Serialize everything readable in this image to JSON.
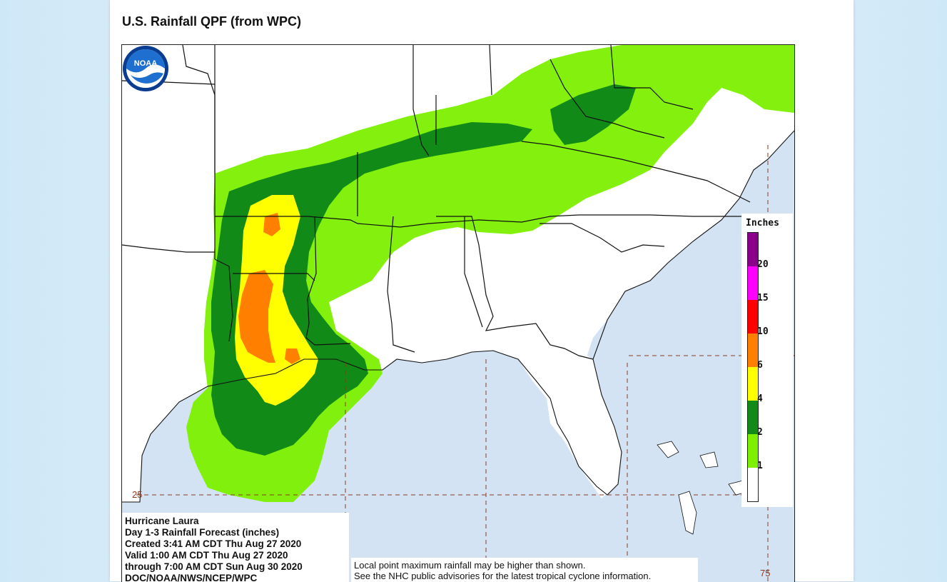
{
  "page": {
    "title": "U.S. Rainfall QPF (from WPC)"
  },
  "legend": {
    "title": "Inches",
    "colors": {
      "lt1": "#ffffff",
      "1to2": "#7cf000",
      "2to4": "#118a18",
      "4to6": "#ffff00",
      "6to10": "#ff8000",
      "10to15": "#ff0000",
      "15to20": "#ff00ff",
      "gt20": "#8b008b"
    },
    "labels": [
      "1",
      "2",
      "4",
      "6",
      "10",
      "15",
      "20"
    ]
  },
  "forecast_info": {
    "lines": [
      "Hurricane Laura",
      "Day 1-3 Rainfall Forecast (inches)",
      "Created 3:41 AM CDT Thu Aug 27 2020",
      "Valid 1:00 AM CDT Thu Aug 27 2020",
      "through 7:00 AM CDT Sun Aug 30 2020",
      "DOC/NOAA/NWS/NCEP/WPC"
    ]
  },
  "notice": {
    "lines": [
      "Local point maximum rainfall may be higher than shown.",
      "See the NHC public advisories for the latest tropical cyclone information."
    ]
  },
  "map": {
    "latitude_label": "25",
    "corner_label": "75",
    "logo_text": "NOAA",
    "water_color": "#d3e3f3",
    "land_color": "#ffffff"
  }
}
